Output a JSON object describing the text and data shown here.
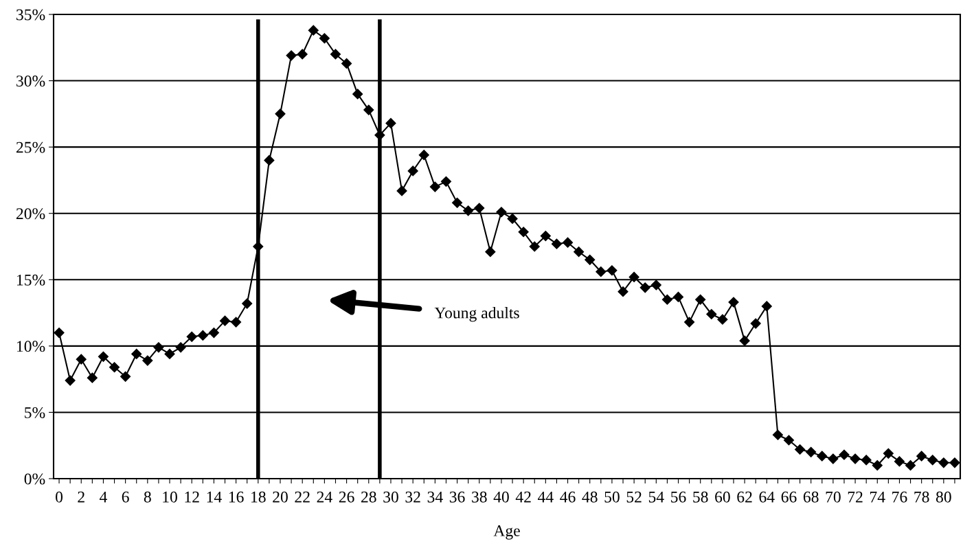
{
  "chart_data": {
    "type": "line",
    "xlabel": "Age",
    "x": [
      0,
      1,
      2,
      3,
      4,
      5,
      6,
      7,
      8,
      9,
      10,
      11,
      12,
      13,
      14,
      15,
      16,
      17,
      18,
      19,
      20,
      21,
      22,
      23,
      24,
      25,
      26,
      27,
      28,
      29,
      30,
      31,
      32,
      33,
      34,
      35,
      36,
      37,
      38,
      39,
      40,
      41,
      42,
      43,
      44,
      45,
      46,
      47,
      48,
      49,
      50,
      51,
      52,
      53,
      54,
      55,
      56,
      57,
      58,
      59,
      60,
      61,
      62,
      63,
      64,
      65,
      66,
      67,
      68,
      69,
      70,
      71,
      72,
      73,
      74,
      75,
      76,
      77,
      78,
      79,
      80,
      81
    ],
    "series": [
      {
        "color": "#000000",
        "values": [
          11.0,
          7.4,
          9.0,
          7.6,
          9.2,
          8.4,
          7.7,
          9.4,
          8.9,
          9.9,
          9.4,
          9.9,
          10.7,
          10.8,
          11.0,
          11.9,
          11.8,
          13.2,
          17.5,
          24.0,
          27.5,
          31.9,
          32.0,
          33.8,
          33.2,
          32.0,
          31.3,
          29.0,
          27.8,
          25.9,
          26.8,
          21.7,
          23.2,
          24.4,
          22.0,
          22.4,
          20.8,
          20.2,
          20.4,
          17.1,
          20.1,
          19.6,
          18.6,
          17.5,
          18.3,
          17.7,
          17.8,
          17.1,
          16.5,
          15.6,
          15.7,
          14.1,
          15.2,
          14.4,
          14.6,
          13.5,
          13.7,
          11.8,
          13.5,
          12.4,
          12.0,
          13.3,
          10.4,
          11.7,
          13.0,
          3.3,
          2.9,
          2.2,
          2.0,
          1.7,
          1.5,
          1.8,
          1.5,
          1.4,
          1.0,
          1.9,
          1.3,
          1.0,
          1.7,
          1.4,
          1.2,
          1.2
        ]
      }
    ],
    "marker": "diamond",
    "line_style": "solid",
    "grid": "y",
    "legend": false,
    "xlim": [
      -0.5,
      81.5
    ],
    "xticks": [
      0,
      {
        "value": 1,
        "label": null
      },
      2,
      {
        "value": 3,
        "label": null
      },
      4,
      {
        "value": 5,
        "label": null
      },
      6,
      {
        "value": 7,
        "label": null
      },
      8,
      {
        "value": 9,
        "label": null
      },
      10,
      {
        "value": 11,
        "label": null
      },
      12,
      {
        "value": 13,
        "label": null
      },
      14,
      {
        "value": 15,
        "label": null
      },
      16,
      {
        "value": 17,
        "label": null
      },
      18,
      {
        "value": 19,
        "label": null
      },
      20,
      {
        "value": 21,
        "label": null
      },
      22,
      {
        "value": 23,
        "label": null
      },
      24,
      {
        "value": 25,
        "label": null
      },
      26,
      {
        "value": 27,
        "label": null
      },
      28,
      {
        "value": 29,
        "label": null
      },
      30,
      {
        "value": 31,
        "label": null
      },
      32,
      {
        "value": 33,
        "label": null
      },
      34,
      {
        "value": 35,
        "label": null
      },
      36,
      {
        "value": 37,
        "label": null
      },
      38,
      {
        "value": 39,
        "label": null
      },
      40,
      {
        "value": 41,
        "label": null
      },
      42,
      {
        "value": 43,
        "label": null
      },
      44,
      {
        "value": 45,
        "label": null
      },
      46,
      {
        "value": 47,
        "label": null
      },
      48,
      {
        "value": 49,
        "label": null
      },
      50,
      {
        "value": 51,
        "label": null
      },
      52,
      {
        "value": 53,
        "label": null
      },
      54,
      {
        "value": 55,
        "label": null
      },
      56,
      {
        "value": 57,
        "label": null
      },
      58,
      {
        "value": 59,
        "label": null
      },
      60,
      {
        "value": 61,
        "label": null
      },
      62,
      {
        "value": 63,
        "label": null
      },
      64,
      {
        "value": 65,
        "label": null
      },
      66,
      {
        "value": 67,
        "label": null
      },
      68,
      {
        "value": 69,
        "label": null
      },
      70,
      {
        "value": 71,
        "label": null
      },
      72,
      {
        "value": 73,
        "label": null
      },
      74,
      {
        "value": 75,
        "label": null
      },
      76,
      {
        "value": 77,
        "label": null
      },
      78,
      {
        "value": 79,
        "label": null
      },
      80,
      {
        "value": 81,
        "label": null
      }
    ],
    "ylim": [
      0,
      35
    ],
    "yticks": [
      {
        "value": 0,
        "label": "0%"
      },
      {
        "value": 5,
        "label": "5%"
      },
      {
        "value": 10,
        "label": "10%"
      },
      {
        "value": 15,
        "label": "15%"
      },
      {
        "value": 20,
        "label": "20%"
      },
      {
        "value": 25,
        "label": "25%"
      },
      {
        "value": 30,
        "label": "30%"
      },
      {
        "value": 35,
        "label": "35%"
      }
    ],
    "ref_lines": [
      {
        "axis": "x",
        "value": 18,
        "color": "#000000"
      },
      {
        "axis": "x",
        "value": 29,
        "color": "#000000"
      }
    ],
    "annotations": [
      "Young adults"
    ]
  }
}
